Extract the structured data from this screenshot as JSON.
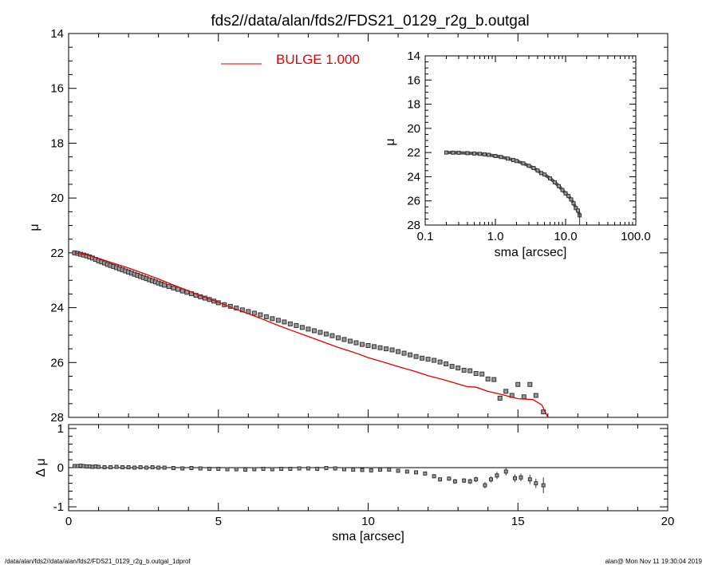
{
  "title": "fds2//data/alan/fds2/FDS21_0129_r2g_b.outgal",
  "footer_left": "/data/alan/fds2//data/alan/fds2/FDS21_0129_r2g_b.outgal_1dprof",
  "footer_right": "alan@  Mon Nov 11 19:30:04 2019",
  "colors": {
    "model": "#e00000",
    "points": "#9a9a9a",
    "axes": "#000000"
  },
  "legend": {
    "label": "BULGE  1.000",
    "position": "top-center"
  },
  "chart_data": [
    {
      "id": "main",
      "type": "scatter",
      "xlabel": "",
      "ylabel": "μ",
      "xlim": [
        0,
        20
      ],
      "ylim": [
        28,
        14
      ],
      "x_ticks": [
        0,
        5,
        10,
        15,
        20
      ],
      "y_ticks": [
        14,
        16,
        18,
        20,
        22,
        24,
        26,
        28
      ],
      "y_tick_labels": [
        "14",
        "16",
        "18",
        "20",
        "22",
        "24",
        "26",
        "28"
      ],
      "series": [
        {
          "name": "",
          "style": "square-markers",
          "x": [
            0.2,
            0.3,
            0.4,
            0.5,
            0.6,
            0.7,
            0.8,
            0.9,
            1.0,
            1.1,
            1.2,
            1.3,
            1.4,
            1.5,
            1.6,
            1.7,
            1.8,
            1.9,
            2.0,
            2.1,
            2.2,
            2.3,
            2.4,
            2.5,
            2.6,
            2.7,
            2.8,
            2.9,
            3.0,
            3.1,
            3.2,
            3.35,
            3.5,
            3.65,
            3.8,
            3.95,
            4.1,
            4.25,
            4.4,
            4.55,
            4.7,
            4.85,
            5.0,
            5.2,
            5.4,
            5.6,
            5.8,
            6.0,
            6.2,
            6.4,
            6.6,
            6.8,
            7.0,
            7.2,
            7.4,
            7.6,
            7.8,
            8.0,
            8.2,
            8.4,
            8.6,
            8.8,
            9.0,
            9.2,
            9.4,
            9.6,
            9.8,
            10.0,
            10.2,
            10.4,
            10.6,
            10.8,
            11.0,
            11.2,
            11.4,
            11.6,
            11.8,
            12.0,
            12.2,
            12.4,
            12.6,
            12.8,
            13.0,
            13.2,
            13.4,
            13.6,
            13.8,
            14.0,
            14.2,
            14.4,
            14.6,
            14.8,
            15.0,
            15.2,
            15.4,
            15.6,
            15.85
          ],
          "y": [
            22.0,
            22.02,
            22.05,
            22.08,
            22.11,
            22.15,
            22.19,
            22.24,
            22.29,
            22.33,
            22.37,
            22.42,
            22.46,
            22.5,
            22.54,
            22.58,
            22.62,
            22.66,
            22.7,
            22.74,
            22.78,
            22.82,
            22.86,
            22.9,
            22.94,
            22.98,
            23.02,
            23.06,
            23.1,
            23.14,
            23.18,
            23.23,
            23.28,
            23.33,
            23.39,
            23.44,
            23.49,
            23.55,
            23.6,
            23.65,
            23.7,
            23.76,
            23.82,
            23.89,
            23.95,
            24.01,
            24.08,
            24.14,
            24.2,
            24.26,
            24.33,
            24.4,
            24.46,
            24.52,
            24.59,
            24.65,
            24.72,
            24.78,
            24.84,
            24.9,
            24.96,
            25.02,
            25.1,
            25.16,
            25.22,
            25.28,
            25.34,
            25.38,
            25.42,
            25.46,
            25.5,
            25.54,
            25.6,
            25.66,
            25.72,
            25.78,
            25.84,
            25.88,
            25.92,
            25.98,
            26.05,
            26.14,
            26.2,
            26.28,
            26.3,
            26.4,
            26.42,
            26.6,
            26.62,
            27.3,
            27.05,
            27.2,
            26.8,
            27.25,
            26.8,
            27.2,
            27.8
          ]
        },
        {
          "name": "BULGE  1.000",
          "style": "line",
          "x": [
            0.2,
            0.6,
            1.0,
            1.5,
            2.0,
            2.5,
            3.0,
            3.5,
            4.0,
            4.5,
            5.0,
            5.5,
            6.0,
            6.5,
            7.0,
            7.5,
            8.0,
            8.5,
            9.0,
            9.5,
            10.0,
            10.5,
            11.0,
            11.5,
            12.0,
            12.5,
            13.0,
            13.3,
            13.6,
            14.0,
            14.5,
            15.0,
            15.5,
            15.8,
            16.0
          ],
          "y": [
            22.0,
            22.07,
            22.2,
            22.38,
            22.55,
            22.75,
            22.95,
            23.17,
            23.38,
            23.6,
            23.8,
            24.02,
            24.22,
            24.43,
            24.65,
            24.85,
            25.05,
            25.25,
            25.45,
            25.62,
            25.82,
            25.98,
            26.15,
            26.3,
            26.48,
            26.62,
            26.78,
            26.88,
            26.9,
            27.05,
            27.18,
            27.32,
            27.35,
            27.55,
            28.05
          ]
        }
      ]
    },
    {
      "id": "inset",
      "type": "scatter",
      "xlabel": "sma [arcsec]",
      "ylabel": "μ",
      "x_scale": "log",
      "xlim": [
        0.1,
        100
      ],
      "ylim": [
        28,
        14
      ],
      "x_ticks": [
        0.1,
        1,
        10,
        100
      ],
      "x_tick_labels": [
        "0.1",
        "1.0",
        "10.0",
        "100.0"
      ],
      "y_ticks": [
        14,
        16,
        18,
        20,
        22,
        24,
        26,
        28
      ],
      "y_tick_labels": [
        "14",
        "16",
        "18",
        "20",
        "22",
        "24",
        "26",
        "28"
      ],
      "series": [
        {
          "name": "",
          "style": "square-markers",
          "x": [
            0.2,
            0.25,
            0.3,
            0.4,
            0.5,
            0.6,
            0.7,
            0.8,
            1.0,
            1.2,
            1.5,
            1.8,
            2.0,
            2.5,
            3.0,
            3.5,
            4.0,
            4.5,
            5.0,
            6.0,
            7.0,
            8.0,
            9.0,
            10.0,
            11.0,
            12.0,
            13.0,
            14.0,
            15.0,
            15.85
          ],
          "y": [
            22.0,
            22.01,
            22.02,
            22.05,
            22.08,
            22.11,
            22.15,
            22.19,
            22.29,
            22.37,
            22.5,
            22.62,
            22.7,
            22.9,
            23.1,
            23.28,
            23.49,
            23.7,
            23.82,
            24.14,
            24.46,
            24.78,
            25.1,
            25.38,
            25.6,
            25.88,
            26.2,
            26.6,
            26.8,
            27.2
          ]
        }
      ]
    },
    {
      "id": "residual",
      "type": "scatter",
      "xlabel": "sma [arcsec]",
      "ylabel": "Δ μ",
      "xlim": [
        0,
        20
      ],
      "ylim": [
        -1.1,
        1.1
      ],
      "x_ticks": [
        0,
        5,
        10,
        15,
        20
      ],
      "x_tick_labels": [
        "0",
        "5",
        "10",
        "15",
        "20"
      ],
      "y_ticks": [
        1,
        0,
        -1
      ],
      "y_tick_labels": [
        "1",
        "0",
        "-1"
      ],
      "series": [
        {
          "name": "",
          "style": "square-markers-with-errorbars",
          "x": [
            0.2,
            0.3,
            0.4,
            0.5,
            0.6,
            0.7,
            0.8,
            0.9,
            1.0,
            1.2,
            1.4,
            1.6,
            1.8,
            2.0,
            2.2,
            2.4,
            2.6,
            2.8,
            3.0,
            3.2,
            3.5,
            3.8,
            4.1,
            4.4,
            4.7,
            5.0,
            5.3,
            5.6,
            5.9,
            6.2,
            6.5,
            6.8,
            7.1,
            7.4,
            7.7,
            8.0,
            8.3,
            8.6,
            8.9,
            9.2,
            9.5,
            9.8,
            10.1,
            10.4,
            10.7,
            11.0,
            11.3,
            11.6,
            11.9,
            12.2,
            12.4,
            12.7,
            12.9,
            13.2,
            13.4,
            13.6,
            13.9,
            14.1,
            14.3,
            14.6,
            14.9,
            15.1,
            15.4,
            15.6,
            15.85
          ],
          "y": [
            0.04,
            0.04,
            0.05,
            0.04,
            0.03,
            0.03,
            0.02,
            0.03,
            0.02,
            0.01,
            0.01,
            0.02,
            0.01,
            0.01,
            0.0,
            0.01,
            0.0,
            0.01,
            0.0,
            0.0,
            -0.01,
            -0.02,
            -0.01,
            -0.02,
            -0.03,
            -0.03,
            -0.04,
            -0.04,
            -0.05,
            -0.04,
            -0.03,
            -0.04,
            -0.03,
            -0.03,
            -0.02,
            -0.02,
            -0.03,
            -0.01,
            -0.02,
            -0.04,
            -0.05,
            -0.06,
            -0.07,
            -0.05,
            -0.05,
            -0.08,
            -0.1,
            -0.12,
            -0.15,
            -0.22,
            -0.3,
            -0.28,
            -0.35,
            -0.33,
            -0.35,
            -0.3,
            -0.45,
            -0.3,
            -0.2,
            -0.1,
            -0.27,
            -0.25,
            -0.3,
            -0.4,
            -0.45
          ],
          "err": [
            0.01,
            0.01,
            0.01,
            0.01,
            0.01,
            0.01,
            0.01,
            0.01,
            0.01,
            0.01,
            0.01,
            0.01,
            0.01,
            0.01,
            0.01,
            0.01,
            0.01,
            0.01,
            0.01,
            0.01,
            0.01,
            0.01,
            0.01,
            0.01,
            0.01,
            0.01,
            0.01,
            0.01,
            0.02,
            0.02,
            0.02,
            0.02,
            0.02,
            0.02,
            0.02,
            0.02,
            0.02,
            0.02,
            0.02,
            0.02,
            0.03,
            0.03,
            0.03,
            0.03,
            0.03,
            0.03,
            0.04,
            0.04,
            0.04,
            0.05,
            0.05,
            0.05,
            0.06,
            0.06,
            0.07,
            0.07,
            0.08,
            0.08,
            0.09,
            0.1,
            0.1,
            0.1,
            0.12,
            0.12,
            0.2
          ]
        }
      ]
    }
  ]
}
